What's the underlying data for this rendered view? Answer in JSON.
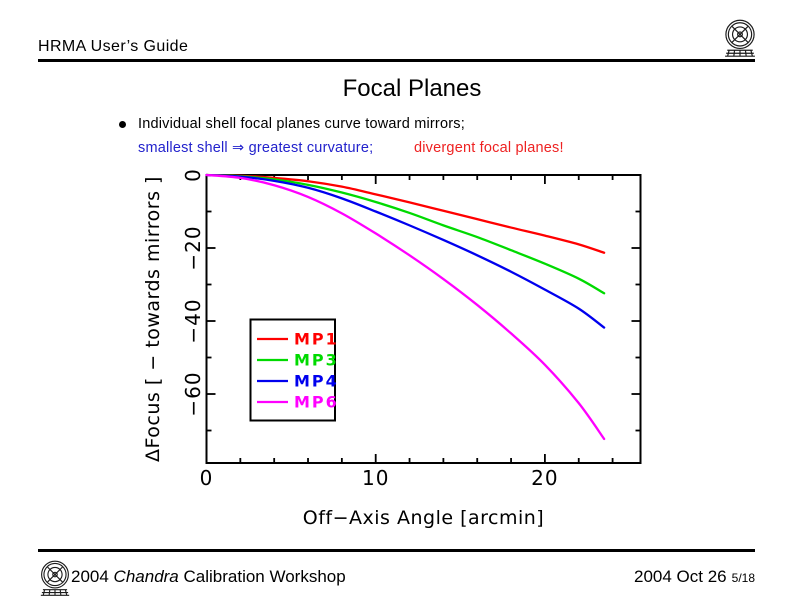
{
  "header": {
    "title": "HRMA User’s Guide",
    "logo": "cxc-emblem"
  },
  "title": "Focal Planes",
  "bullet": {
    "line1": "Individual shell focal planes curve toward mirrors;",
    "line2_blue": "smallest shell ⇒ greatest curvature;",
    "line2_red": "divergent focal planes!"
  },
  "colors": {
    "blue_text": "#2222cc",
    "red_text": "#ee2222",
    "axis": "#000000"
  },
  "chart_data": {
    "type": "line",
    "title": "",
    "xlabel": "Off−Axis Angle [arcmin]",
    "ylabel": "ΔFocus [ − towards mirrors ]",
    "xlim": [
      0,
      25.65
    ],
    "ylim": [
      -78.9,
      0
    ],
    "grid": false,
    "legend_position": "inside-left-middle",
    "x_ticks": {
      "values": [
        0,
        10,
        20
      ],
      "labels": [
        "0",
        "10",
        "20"
      ],
      "minor_step": 2
    },
    "y_ticks": {
      "values": [
        0,
        -20,
        -40,
        -60
      ],
      "labels": [
        "0",
        "−20",
        "−40",
        "−60"
      ],
      "minor_step": 10
    },
    "x": [
      0,
      2,
      4,
      6,
      8,
      10,
      12,
      14,
      16,
      18,
      20,
      22,
      23.5
    ],
    "series": [
      {
        "name": "MP1",
        "color": "#ff0000",
        "values": [
          0,
          -0.2,
          -0.8,
          -1.7,
          -3.2,
          -5.3,
          -7.5,
          -9.8,
          -12.1,
          -14.4,
          -16.6,
          -19.0,
          -21.3
        ]
      },
      {
        "name": "MP3",
        "color": "#00da00",
        "values": [
          0,
          -0.35,
          -1.2,
          -2.7,
          -4.8,
          -7.4,
          -10.4,
          -13.8,
          -17.0,
          -20.6,
          -24.3,
          -28.4,
          -32.4
        ]
      },
      {
        "name": "MP4",
        "color": "#0000ee",
        "values": [
          0,
          -0.45,
          -1.6,
          -3.5,
          -6.4,
          -10.0,
          -13.8,
          -17.8,
          -22.0,
          -26.5,
          -31.4,
          -36.6,
          -41.8
        ]
      },
      {
        "name": "MP6",
        "color": "#ff00ff",
        "values": [
          0,
          -0.8,
          -2.8,
          -6.0,
          -10.5,
          -16.0,
          -22.0,
          -28.5,
          -35.6,
          -43.4,
          -52.0,
          -62.5,
          -72.3
        ]
      }
    ]
  },
  "footer": {
    "left_pre": "2004 ",
    "left_italic": "Chandra",
    "left_post": " Calibration Workshop",
    "right_date": "2004 Oct 26",
    "right_page": "5/18"
  }
}
